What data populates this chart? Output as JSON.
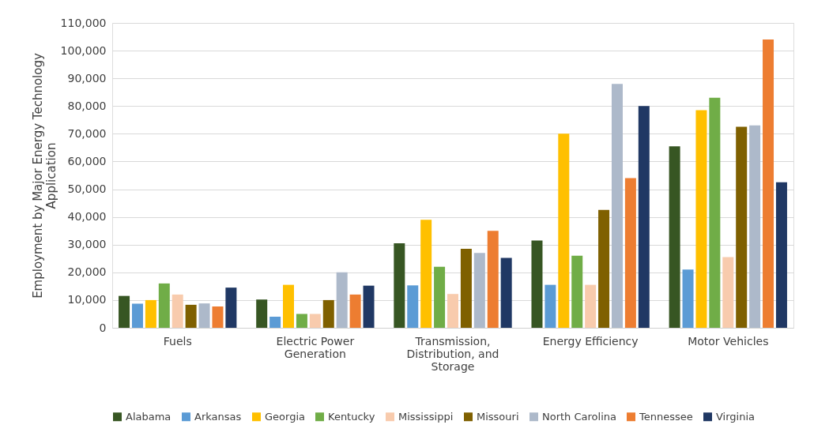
{
  "chart_data": {
    "type": "bar",
    "ylabel": "Employment by Major Energy Technology Application",
    "categories": [
      "Fuels",
      "Electric Power Generation",
      "Transmission, Distribution, and Storage",
      "Energy Efficiency",
      "Motor Vehicles"
    ],
    "series": [
      {
        "name": "Alabama",
        "color": "#375623",
        "values": [
          11500,
          10200,
          30500,
          31500,
          65500
        ]
      },
      {
        "name": "Arkansas",
        "color": "#5b9bd5",
        "values": [
          8700,
          4000,
          15300,
          15500,
          21000
        ]
      },
      {
        "name": "Georgia",
        "color": "#ffc000",
        "values": [
          10000,
          15500,
          39000,
          70000,
          78500
        ]
      },
      {
        "name": "Kentucky",
        "color": "#70ad47",
        "values": [
          16000,
          5000,
          22000,
          26000,
          83000
        ]
      },
      {
        "name": "Mississippi",
        "color": "#f8cbad",
        "values": [
          12000,
          5000,
          12200,
          15500,
          25500
        ]
      },
      {
        "name": "Missouri",
        "color": "#7f6000",
        "values": [
          8300,
          10000,
          28500,
          42500,
          72500
        ]
      },
      {
        "name": "North Carolina",
        "color": "#adb9ca",
        "values": [
          8800,
          20000,
          27000,
          88000,
          73000
        ]
      },
      {
        "name": "Tennessee",
        "color": "#ed7d31",
        "values": [
          7700,
          12000,
          35000,
          54000,
          104000
        ]
      },
      {
        "name": "Virginia",
        "color": "#203864",
        "values": [
          14500,
          15200,
          25200,
          80000,
          52500
        ]
      }
    ],
    "ylim": [
      0,
      110000
    ],
    "yticks": [
      0,
      {
        "value": 10000,
        "label": "10,000"
      },
      {
        "value": 20000,
        "label": "20,000"
      },
      {
        "value": 30000,
        "label": "30,000"
      },
      {
        "value": 40000,
        "label": "40,000"
      },
      {
        "value": 50000,
        "label": "50,000"
      },
      {
        "value": 60000,
        "label": "60,000"
      },
      {
        "value": 70000,
        "label": "70,000"
      },
      {
        "value": 80000,
        "label": "80,000"
      },
      {
        "value": 90000,
        "label": "90,000"
      },
      {
        "value": 100000,
        "label": "100,000"
      },
      {
        "value": 110000,
        "label": "110,000"
      }
    ],
    "grid": "y",
    "legend": "bottom"
  }
}
